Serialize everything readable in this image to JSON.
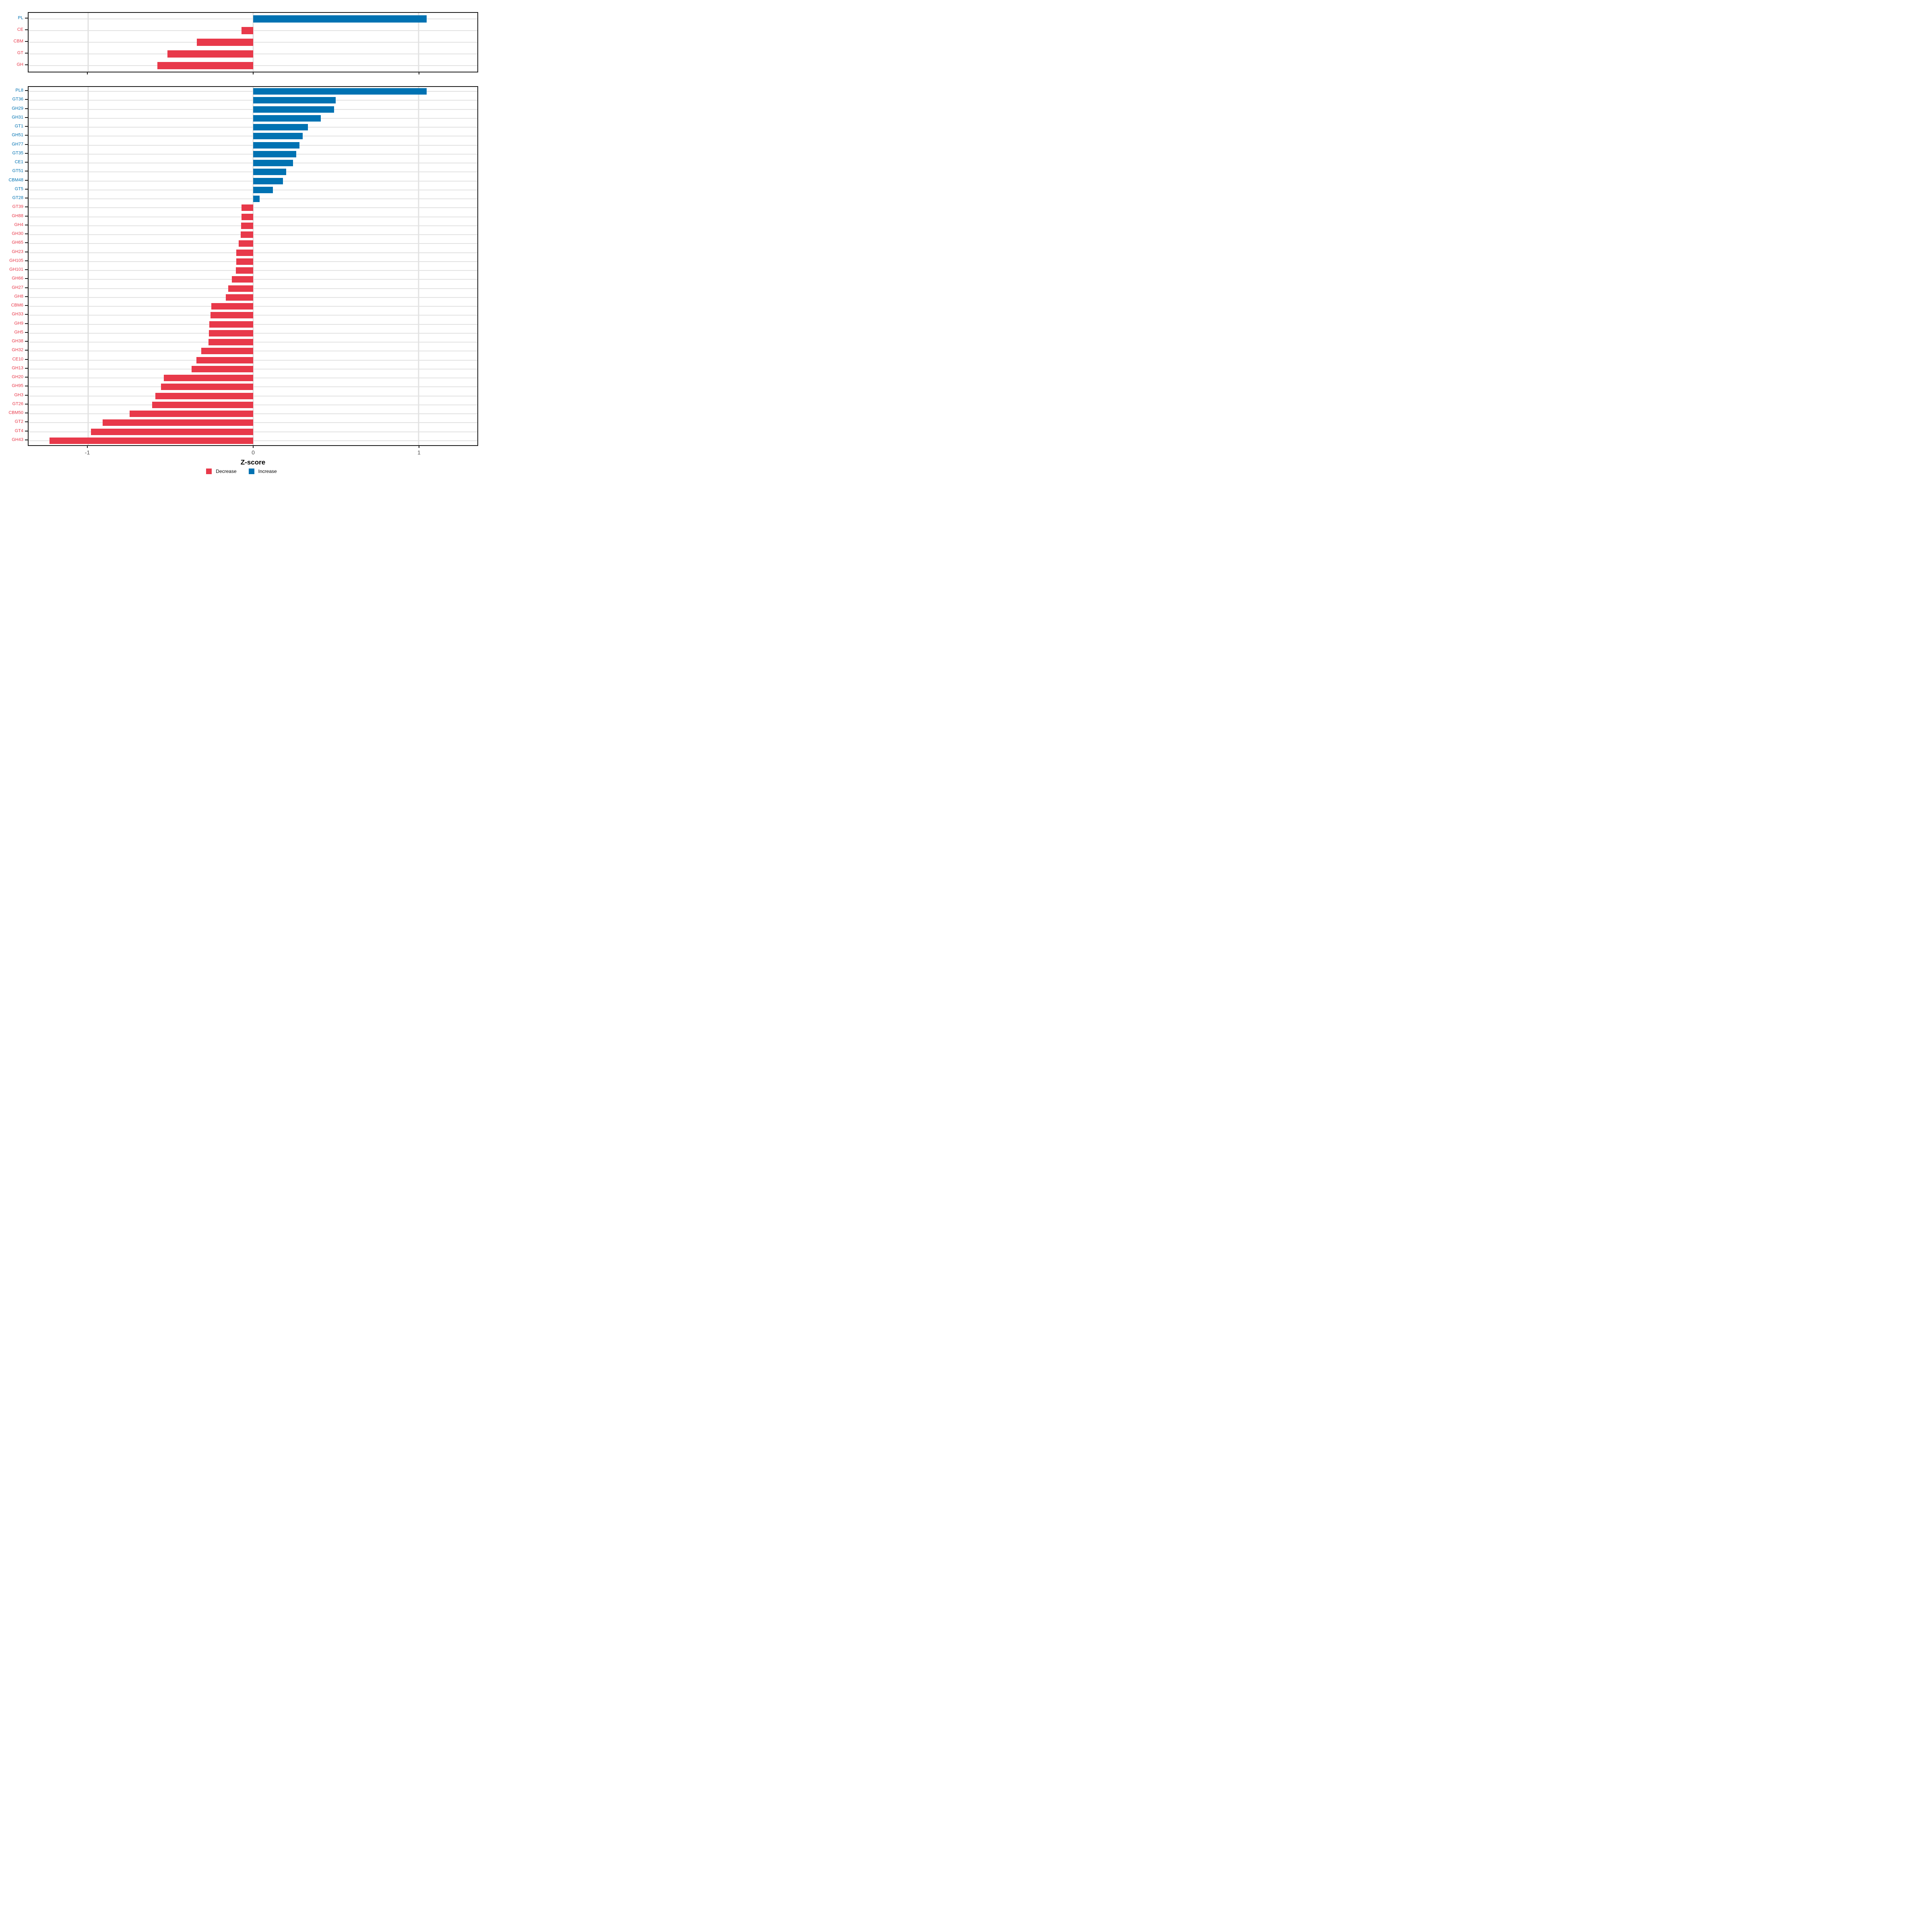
{
  "figure": {
    "kind": "paired horizontal bar charts of CAZyme family and subfamily Z-scores",
    "background": "#ffffff"
  },
  "colors": {
    "increase": "#0072B2",
    "decrease": "#E8394A",
    "gridline": "#e2e2e2",
    "zero_gridline": "#e2e2e2",
    "panel_border": "#1a1a1a",
    "tick_mark": "#1a1a1a",
    "axis_tick_label": "#4d4d4d",
    "axis_title": "#000000"
  },
  "axis": {
    "title": "Z-score",
    "tick_values": [
      -1,
      0,
      1
    ],
    "tick_labels": [
      "-1",
      "0",
      "1"
    ],
    "xlim": [
      -1.36,
      1.36
    ]
  },
  "legend": {
    "items": [
      {
        "label": "Decrease",
        "color": "#E8394A"
      },
      {
        "label": "Increase",
        "color": "#0072B2"
      }
    ]
  },
  "chart_data": [
    {
      "name": "family-panel",
      "type": "bar",
      "orientation": "horizontal",
      "xlabel": "Z-score",
      "xlim": [
        -1.36,
        1.36
      ],
      "grid": true,
      "bars": [
        {
          "label": "PL",
          "value": 1.05,
          "direction": "increase"
        },
        {
          "label": "CE",
          "value": -0.07,
          "direction": "decrease"
        },
        {
          "label": "CBM",
          "value": -0.34,
          "direction": "decrease"
        },
        {
          "label": "GT",
          "value": -0.52,
          "direction": "decrease"
        },
        {
          "label": "GH",
          "value": -0.58,
          "direction": "decrease"
        }
      ]
    },
    {
      "name": "subfamily-panel",
      "type": "bar",
      "orientation": "horizontal",
      "xlabel": "Z-score",
      "xlim": [
        -1.36,
        1.36
      ],
      "grid": true,
      "bars": [
        {
          "label": "PL8",
          "value": 1.05,
          "direction": "increase"
        },
        {
          "label": "GT36",
          "value": 0.5,
          "direction": "increase"
        },
        {
          "label": "GH29",
          "value": 0.49,
          "direction": "increase"
        },
        {
          "label": "GH31",
          "value": 0.41,
          "direction": "increase"
        },
        {
          "label": "GT1",
          "value": 0.33,
          "direction": "increase"
        },
        {
          "label": "GH51",
          "value": 0.3,
          "direction": "increase"
        },
        {
          "label": "GH77",
          "value": 0.28,
          "direction": "increase"
        },
        {
          "label": "GT35",
          "value": 0.26,
          "direction": "increase"
        },
        {
          "label": "CE1",
          "value": 0.24,
          "direction": "increase"
        },
        {
          "label": "GT51",
          "value": 0.2,
          "direction": "increase"
        },
        {
          "label": "CBM48",
          "value": 0.18,
          "direction": "increase"
        },
        {
          "label": "GT5",
          "value": 0.12,
          "direction": "increase"
        },
        {
          "label": "GT28",
          "value": 0.04,
          "direction": "increase"
        },
        {
          "label": "GT39",
          "value": -0.07,
          "direction": "decrease"
        },
        {
          "label": "GH88",
          "value": -0.071,
          "direction": "decrease"
        },
        {
          "label": "GH4",
          "value": -0.073,
          "direction": "decrease"
        },
        {
          "label": "GH30",
          "value": -0.076,
          "direction": "decrease"
        },
        {
          "label": "GH65",
          "value": -0.089,
          "direction": "decrease"
        },
        {
          "label": "GH23",
          "value": -0.102,
          "direction": "decrease"
        },
        {
          "label": "GH105",
          "value": -0.103,
          "direction": "decrease"
        },
        {
          "label": "GH101",
          "value": -0.104,
          "direction": "decrease"
        },
        {
          "label": "GH66",
          "value": -0.13,
          "direction": "decrease"
        },
        {
          "label": "GH27",
          "value": -0.15,
          "direction": "decrease"
        },
        {
          "label": "GH8",
          "value": -0.165,
          "direction": "decrease"
        },
        {
          "label": "CBM6",
          "value": -0.253,
          "direction": "decrease"
        },
        {
          "label": "GH33",
          "value": -0.259,
          "direction": "decrease"
        },
        {
          "label": "GH9",
          "value": -0.266,
          "direction": "decrease"
        },
        {
          "label": "GH5",
          "value": -0.268,
          "direction": "decrease"
        },
        {
          "label": "GH38",
          "value": -0.271,
          "direction": "decrease"
        },
        {
          "label": "GH32",
          "value": -0.314,
          "direction": "decrease"
        },
        {
          "label": "CE10",
          "value": -0.344,
          "direction": "decrease"
        },
        {
          "label": "GH13",
          "value": -0.374,
          "direction": "decrease"
        },
        {
          "label": "GH20",
          "value": -0.54,
          "direction": "decrease"
        },
        {
          "label": "GH95",
          "value": -0.559,
          "direction": "decrease"
        },
        {
          "label": "GH3",
          "value": -0.591,
          "direction": "decrease"
        },
        {
          "label": "GT26",
          "value": -0.612,
          "direction": "decrease"
        },
        {
          "label": "CBM50",
          "value": -0.748,
          "direction": "decrease"
        },
        {
          "label": "GT2",
          "value": -0.912,
          "direction": "decrease"
        },
        {
          "label": "GT4",
          "value": -0.981,
          "direction": "decrease"
        },
        {
          "label": "GH43",
          "value": -1.232,
          "direction": "decrease"
        }
      ]
    }
  ]
}
